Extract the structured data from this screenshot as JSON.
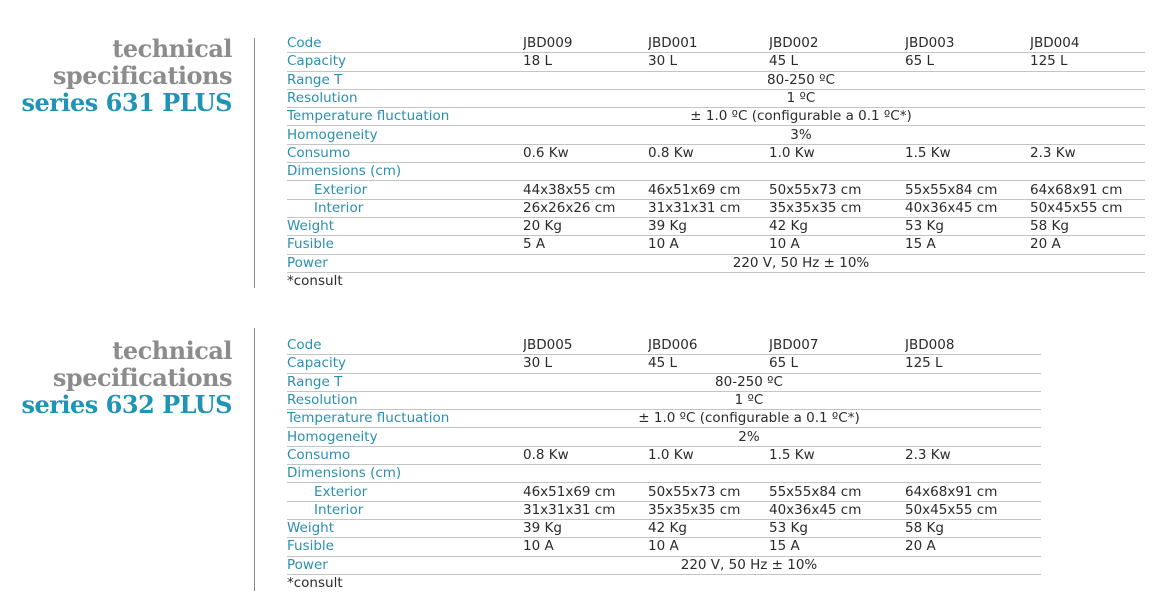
{
  "sections": [
    {
      "heading": [
        "technical",
        "specifications",
        "series 631 PLUS"
      ],
      "header": {
        "label": "Code",
        "cells": [
          "JBD009",
          "JBD001",
          "JBD002",
          "JBD003",
          "JBD004"
        ]
      },
      "rows": [
        {
          "label": "Capacity",
          "cells": [
            "18 L",
            "30 L",
            "45 L",
            "65 L",
            "125 L"
          ]
        },
        {
          "label": "Range T",
          "span": "80-250 ºC"
        },
        {
          "label": "Resolution",
          "span": "1 ºC"
        },
        {
          "label": "Temperature fluctuation",
          "span": "± 1.0 ºC (configurable a 0.1 ºC*)"
        },
        {
          "label": "Homogeneity",
          "span": "3%"
        },
        {
          "label": "Consumo",
          "cells": [
            "0.6 Kw",
            "0.8 Kw",
            "1.0 Kw",
            "1.5 Kw",
            "2.3 Kw"
          ]
        },
        {
          "label": "Dimensions (cm)"
        },
        {
          "label": "Exterior",
          "indent": true,
          "cells": [
            "44x38x55 cm",
            "46x51x69 cm",
            "50x55x73 cm",
            "55x55x84 cm",
            "64x68x91 cm"
          ]
        },
        {
          "label": "Interior",
          "indent": true,
          "cells": [
            "26x26x26 cm",
            "31x31x31 cm",
            "35x35x35 cm",
            "40x36x45 cm",
            "50x45x55 cm"
          ]
        },
        {
          "label": "Weight",
          "cells": [
            "20 Kg",
            "39 Kg",
            "42 Kg",
            "53 Kg",
            "58 Kg"
          ]
        },
        {
          "label": "Fusible",
          "cells": [
            "5 A",
            "10 A",
            "10 A",
            "15 A",
            "20 A"
          ]
        },
        {
          "label": "Power",
          "span": "220 V, 50 Hz ± 10%"
        }
      ],
      "footnote": "*consult"
    },
    {
      "heading": [
        "technical",
        "specifications",
        "series 632 PLUS"
      ],
      "header": {
        "label": "Code",
        "cells": [
          "JBD005",
          "JBD006",
          "JBD007",
          "JBD008"
        ]
      },
      "rows": [
        {
          "label": "Capacity",
          "cells": [
            "30 L",
            "45 L",
            "65 L",
            "125 L"
          ]
        },
        {
          "label": "Range T",
          "span": "80-250 ºC"
        },
        {
          "label": "Resolution",
          "span": "1 ºC"
        },
        {
          "label": "Temperature fluctuation",
          "span": "± 1.0 ºC (configurable a 0.1 ºC*)"
        },
        {
          "label": "Homogeneity",
          "span": "2%"
        },
        {
          "label": "Consumo",
          "cells": [
            "0.8 Kw",
            "1.0 Kw",
            "1.5 Kw",
            "2.3 Kw"
          ]
        },
        {
          "label": "Dimensions (cm)"
        },
        {
          "label": "Exterior",
          "indent": true,
          "cells": [
            "46x51x69 cm",
            "50x55x73 cm",
            "55x55x84 cm",
            "64x68x91 cm"
          ]
        },
        {
          "label": "Interior",
          "indent": true,
          "cells": [
            "31x31x31 cm",
            "35x35x35 cm",
            "40x36x45 cm",
            "50x45x55 cm"
          ]
        },
        {
          "label": "Weight",
          "cells": [
            "39 Kg",
            "42 Kg",
            "53 Kg",
            "58 Kg"
          ]
        },
        {
          "label": "Fusible",
          "cells": [
            "10 A",
            "10 A",
            "15 A",
            "20 A"
          ]
        },
        {
          "label": "Power",
          "span": "220 V, 50 Hz ± 10%"
        }
      ],
      "footnote": "*consult"
    }
  ]
}
